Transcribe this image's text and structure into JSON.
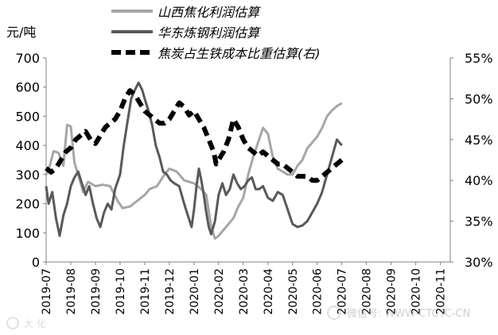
{
  "chart_data": {
    "type": "line",
    "unit_left": "元/吨",
    "x_labels": [
      "2019-07",
      "2019-08",
      "2019-09",
      "2019-10",
      "2019-11",
      "2019-12",
      "2020-01",
      "2020-02",
      "2020-03",
      "2020-04",
      "2020-05",
      "2020-06",
      "2020-07",
      "2020-08",
      "2020-09",
      "2020-10",
      "2020-11"
    ],
    "y_left": {
      "min": 0,
      "max": 700,
      "ticks": [
        0,
        100,
        200,
        300,
        400,
        500,
        600,
        700
      ]
    },
    "y_right": {
      "min": 30,
      "max": 55,
      "ticks": [
        30,
        35,
        40,
        45,
        50,
        55
      ],
      "format": "%"
    },
    "grid": false,
    "legend_position": "top",
    "series": [
      {
        "name": "山西焦化利润估算",
        "axis": "left",
        "color": "#a6a6a6",
        "style": "solid",
        "points": [
          [
            0.0,
            300
          ],
          [
            0.15,
            330
          ],
          [
            0.3,
            380
          ],
          [
            0.5,
            375
          ],
          [
            0.7,
            330
          ],
          [
            0.85,
            470
          ],
          [
            1.0,
            465
          ],
          [
            1.15,
            340
          ],
          [
            1.3,
            300
          ],
          [
            1.5,
            240
          ],
          [
            1.7,
            275
          ],
          [
            2.0,
            260
          ],
          [
            2.3,
            265
          ],
          [
            2.6,
            260
          ],
          [
            2.9,
            210
          ],
          [
            3.1,
            185
          ],
          [
            3.4,
            190
          ],
          [
            3.7,
            210
          ],
          [
            4.0,
            230
          ],
          [
            4.2,
            250
          ],
          [
            4.5,
            260
          ],
          [
            4.8,
            300
          ],
          [
            5.0,
            320
          ],
          [
            5.3,
            310
          ],
          [
            5.6,
            280
          ],
          [
            6.0,
            270
          ],
          [
            6.3,
            250
          ],
          [
            6.5,
            230
          ],
          [
            6.7,
            120
          ],
          [
            6.85,
            80
          ],
          [
            7.0,
            90
          ],
          [
            7.2,
            110
          ],
          [
            7.4,
            130
          ],
          [
            7.6,
            150
          ],
          [
            7.8,
            190
          ],
          [
            8.0,
            220
          ],
          [
            8.2,
            300
          ],
          [
            8.4,
            360
          ],
          [
            8.6,
            410
          ],
          [
            8.8,
            460
          ],
          [
            9.0,
            440
          ],
          [
            9.2,
            360
          ],
          [
            9.4,
            320
          ],
          [
            9.6,
            310
          ],
          [
            9.8,
            300
          ],
          [
            10.0,
            300
          ],
          [
            10.2,
            330
          ],
          [
            10.4,
            350
          ],
          [
            10.6,
            390
          ],
          [
            10.8,
            410
          ],
          [
            11.0,
            430
          ],
          [
            11.2,
            460
          ],
          [
            11.4,
            500
          ],
          [
            11.6,
            520
          ],
          [
            11.8,
            535
          ],
          [
            12.0,
            545
          ]
        ]
      },
      {
        "name": "华东炼钢利润估算",
        "axis": "left",
        "color": "#595959",
        "style": "solid",
        "points": [
          [
            0.0,
            260
          ],
          [
            0.1,
            200
          ],
          [
            0.25,
            240
          ],
          [
            0.4,
            150
          ],
          [
            0.55,
            90
          ],
          [
            0.7,
            160
          ],
          [
            0.85,
            200
          ],
          [
            1.0,
            260
          ],
          [
            1.15,
            290
          ],
          [
            1.3,
            310
          ],
          [
            1.45,
            270
          ],
          [
            1.6,
            230
          ],
          [
            1.75,
            260
          ],
          [
            1.9,
            200
          ],
          [
            2.05,
            150
          ],
          [
            2.2,
            120
          ],
          [
            2.35,
            170
          ],
          [
            2.5,
            200
          ],
          [
            2.65,
            180
          ],
          [
            2.8,
            250
          ],
          [
            3.0,
            300
          ],
          [
            3.15,
            400
          ],
          [
            3.3,
            480
          ],
          [
            3.45,
            560
          ],
          [
            3.6,
            590
          ],
          [
            3.75,
            615
          ],
          [
            3.9,
            590
          ],
          [
            4.0,
            560
          ],
          [
            4.15,
            520
          ],
          [
            4.3,
            470
          ],
          [
            4.45,
            400
          ],
          [
            4.6,
            360
          ],
          [
            4.75,
            310
          ],
          [
            4.9,
            300
          ],
          [
            5.05,
            280
          ],
          [
            5.2,
            270
          ],
          [
            5.4,
            260
          ],
          [
            5.6,
            200
          ],
          [
            5.75,
            160
          ],
          [
            5.9,
            120
          ],
          [
            6.0,
            180
          ],
          [
            6.1,
            260
          ],
          [
            6.2,
            320
          ],
          [
            6.3,
            280
          ],
          [
            6.4,
            230
          ],
          [
            6.5,
            170
          ],
          [
            6.6,
            120
          ],
          [
            6.7,
            95
          ],
          [
            6.85,
            140
          ],
          [
            7.0,
            230
          ],
          [
            7.15,
            270
          ],
          [
            7.3,
            230
          ],
          [
            7.45,
            250
          ],
          [
            7.6,
            300
          ],
          [
            7.75,
            270
          ],
          [
            7.9,
            250
          ],
          [
            8.05,
            260
          ],
          [
            8.2,
            280
          ],
          [
            8.35,
            290
          ],
          [
            8.5,
            250
          ],
          [
            8.65,
            250
          ],
          [
            8.8,
            260
          ],
          [
            9.0,
            220
          ],
          [
            9.2,
            210
          ],
          [
            9.4,
            240
          ],
          [
            9.6,
            230
          ],
          [
            9.8,
            180
          ],
          [
            10.0,
            130
          ],
          [
            10.2,
            120
          ],
          [
            10.4,
            125
          ],
          [
            10.6,
            140
          ],
          [
            10.8,
            170
          ],
          [
            11.0,
            200
          ],
          [
            11.2,
            240
          ],
          [
            11.4,
            300
          ],
          [
            11.6,
            360
          ],
          [
            11.8,
            420
          ],
          [
            12.0,
            400
          ]
        ]
      },
      {
        "name": "焦炭占生铁成本比重估算(右)",
        "axis": "right",
        "color": "#000000",
        "style": "dashed",
        "points": [
          [
            0.0,
            41.5
          ],
          [
            0.2,
            41.0
          ],
          [
            0.4,
            41.5
          ],
          [
            0.6,
            42.5
          ],
          [
            0.8,
            43.5
          ],
          [
            1.0,
            44.0
          ],
          [
            1.2,
            45.0
          ],
          [
            1.4,
            45.5
          ],
          [
            1.6,
            46.0
          ],
          [
            1.8,
            45.0
          ],
          [
            2.0,
            44.5
          ],
          [
            2.2,
            45.5
          ],
          [
            2.4,
            46.5
          ],
          [
            2.6,
            47.0
          ],
          [
            2.8,
            47.5
          ],
          [
            3.0,
            48.5
          ],
          [
            3.2,
            50.0
          ],
          [
            3.4,
            51.0
          ],
          [
            3.6,
            50.5
          ],
          [
            3.8,
            49.5
          ],
          [
            4.0,
            48.5
          ],
          [
            4.2,
            48.0
          ],
          [
            4.4,
            47.5
          ],
          [
            4.6,
            47.0
          ],
          [
            4.8,
            47.0
          ],
          [
            5.0,
            47.5
          ],
          [
            5.2,
            48.5
          ],
          [
            5.4,
            49.5
          ],
          [
            5.6,
            49.0
          ],
          [
            5.8,
            48.0
          ],
          [
            6.0,
            48.5
          ],
          [
            6.2,
            47.5
          ],
          [
            6.4,
            46.5
          ],
          [
            6.6,
            45.0
          ],
          [
            6.8,
            43.5
          ],
          [
            6.9,
            42.0
          ],
          [
            7.0,
            42.5
          ],
          [
            7.2,
            43.5
          ],
          [
            7.4,
            45.0
          ],
          [
            7.6,
            47.5
          ],
          [
            7.8,
            46.5
          ],
          [
            8.0,
            45.0
          ],
          [
            8.2,
            44.0
          ],
          [
            8.4,
            43.5
          ],
          [
            8.6,
            43.0
          ],
          [
            8.8,
            43.5
          ],
          [
            9.0,
            43.0
          ],
          [
            9.2,
            42.5
          ],
          [
            9.4,
            42.0
          ],
          [
            9.6,
            42.0
          ],
          [
            9.8,
            41.5
          ],
          [
            10.0,
            41.0
          ],
          [
            10.2,
            40.5
          ],
          [
            10.4,
            40.5
          ],
          [
            10.6,
            40.5
          ],
          [
            10.8,
            40.0
          ],
          [
            11.0,
            40.0
          ],
          [
            11.2,
            40.5
          ],
          [
            11.4,
            41.0
          ],
          [
            11.6,
            41.5
          ],
          [
            11.8,
            42.0
          ],
          [
            12.0,
            42.5
          ]
        ]
      }
    ]
  },
  "watermark": {
    "left": "大 化",
    "right": "微信号: WWW-CTCTC-CN"
  }
}
